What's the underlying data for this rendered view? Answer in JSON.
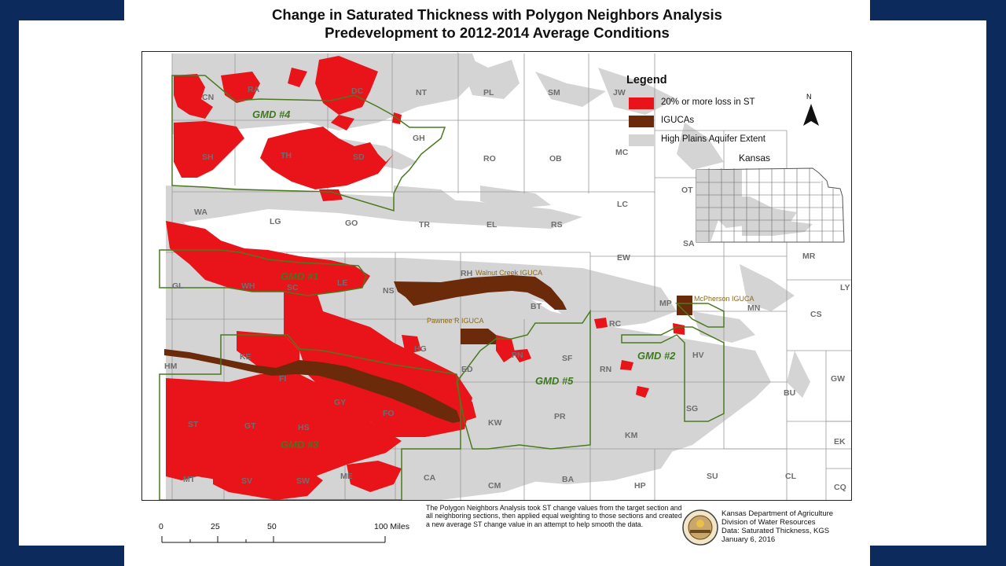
{
  "title": {
    "line1": "Change in Saturated Thickness with Polygon Neighbors Analysis",
    "line2": "Predevelopment to 2012-2014 Average Conditions"
  },
  "legend": {
    "title": "Legend",
    "items": [
      {
        "label": "20% or more loss in ST",
        "color": "#e8141a"
      },
      {
        "label": "IGUCAs",
        "color": "#6b2a0a"
      },
      {
        "label": "High Plains Aquifer Extent",
        "color": "#d4d4d4"
      }
    ]
  },
  "north_arrow": {
    "label": "N"
  },
  "inset": {
    "label": "Kansas"
  },
  "counties": {
    "CN": "CN",
    "RA": "RA",
    "DC": "DC",
    "NT": "NT",
    "PL": "PL",
    "SM": "SM",
    "JW": "JW",
    "SH": "SH",
    "TH": "TH",
    "SD": "SD",
    "GH": "GH",
    "RO": "RO",
    "OB": "OB",
    "MC": "MC",
    "WA": "WA",
    "LG": "LG",
    "GO": "GO",
    "TR": "TR",
    "EL": "EL",
    "RS": "RS",
    "LC": "LC",
    "OT": "OT",
    "SA": "SA",
    "EW": "EW",
    "MR": "MR",
    "GL": "GL",
    "WH": "WH",
    "SC": "SC",
    "LE": "LE",
    "NS": "NS",
    "RH": "RH",
    "BT": "BT",
    "MP": "MP",
    "MN": "MN",
    "CS": "CS",
    "LY": "LY",
    "RC": "RC",
    "HM": "HM",
    "KE": "KE",
    "FI": "FI",
    "HG": "HG",
    "PN": "PN",
    "SF": "SF",
    "RN": "RN",
    "HV": "HV",
    "ED": "ED",
    "GY": "GY",
    "FO": "FO",
    "KW": "KW",
    "PR": "PR",
    "SG": "SG",
    "BU": "BU",
    "GW": "GW",
    "ST": "ST",
    "GT": "GT",
    "HS": "HS",
    "KM": "KM",
    "EK": "EK",
    "MT": "MT",
    "SV": "SV",
    "SW": "SW",
    "ME": "ME",
    "CA": "CA",
    "CM": "CM",
    "BA": "BA",
    "HP": "HP",
    "SU": "SU",
    "CL": "CL",
    "CQ": "CQ"
  },
  "gmd": {
    "gmd4": "GMD #4",
    "gmd1": "GMD #1",
    "gmd2": "GMD #2",
    "gmd3": "GMD #3",
    "gmd5": "GMD #5"
  },
  "igucas": {
    "walnut": "Walnut Creek IGUCA",
    "pawnee": "Pawnee R IGUCA",
    "mcpherson": "McPherson IGUCA"
  },
  "scale": {
    "t0": "0",
    "t25": "25",
    "t50": "50",
    "t100": "100 Miles"
  },
  "note": "The Polygon Neighbors Analysis took ST change values from the target section and all neighboring sections, then applied equal weighting to those sections and created a new average ST change value in an attempt to help smooth the data.",
  "credits": {
    "line1": "Kansas Department of Agriculture",
    "line2": "Division of Water Resources",
    "line3": "Data: Saturated Thickness, KGS",
    "line4": "January 6, 2016"
  }
}
